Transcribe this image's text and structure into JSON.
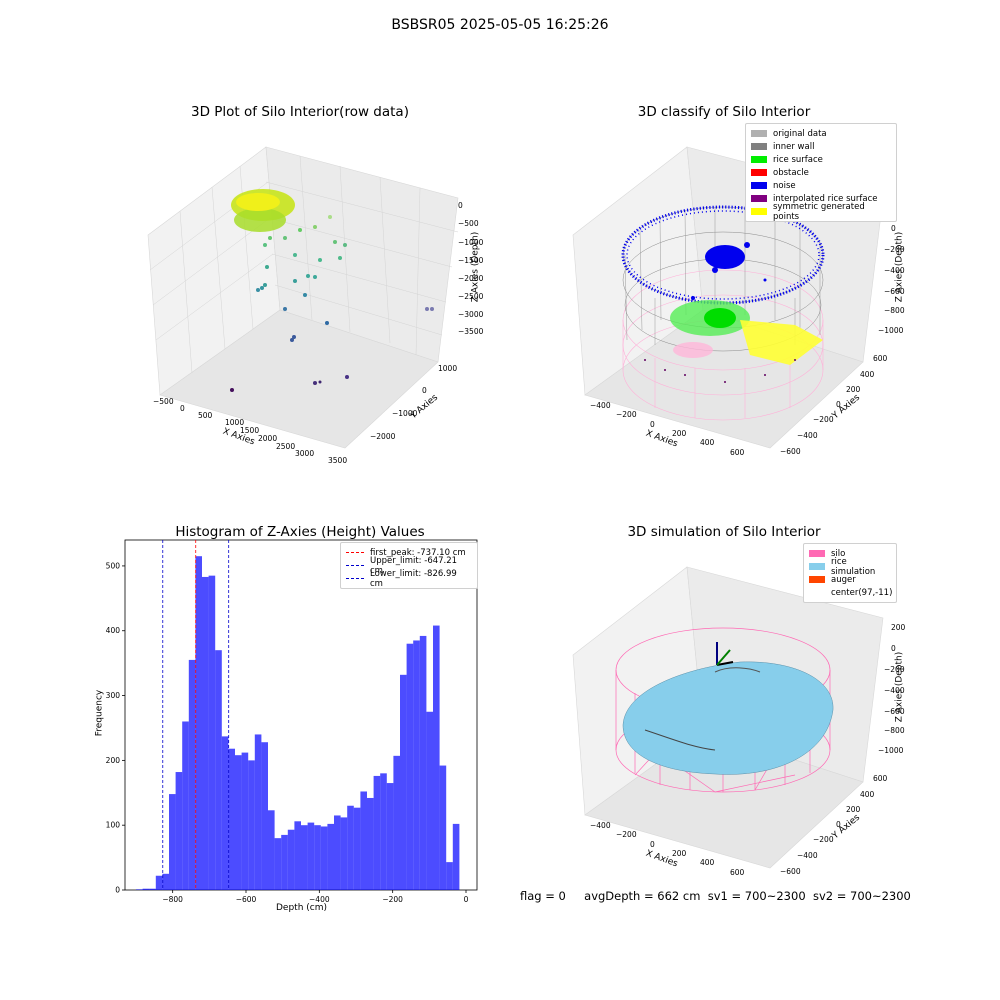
{
  "suptitle": "BSBSR05 2025-05-05 16:25:26",
  "panels": {
    "raw": {
      "title": "3D Plot of Silo Interior(row data)",
      "xlabel": "X Axies",
      "ylabel": "Y Axies",
      "zlabel": "Z Axies (Depth)",
      "xticks": [
        "−500",
        "0",
        "500",
        "1000",
        "1500",
        "2000",
        "2500",
        "3000",
        "3500"
      ],
      "yticks": [
        "1000",
        "0",
        "−1000",
        "−2000"
      ],
      "zticks": [
        "0",
        "−500",
        "−1000",
        "−1500",
        "−2000",
        "−2500",
        "−3000",
        "−3500"
      ]
    },
    "classify": {
      "title": "3D classify of Silo Interior",
      "xlabel": "X Axies",
      "ylabel": "Y Axies",
      "zlabel": "Z Axies (Depth)",
      "xticks": [
        "−400",
        "−200",
        "0",
        "200",
        "400",
        "600"
      ],
      "yticks": [
        "600",
        "400",
        "200",
        "0",
        "−200",
        "−400",
        "−600"
      ],
      "zticks": [
        "0",
        "−200",
        "−400",
        "−600",
        "−800",
        "−1000"
      ],
      "legend": [
        {
          "label": "original data",
          "color": "#b0b0b0"
        },
        {
          "label": "inner wall",
          "color": "#808080"
        },
        {
          "label": "rice surface",
          "color": "#00ee00"
        },
        {
          "label": "obstacle",
          "color": "#ff0000"
        },
        {
          "label": "noise",
          "color": "#0000ee"
        },
        {
          "label": "interpolated rice surface",
          "color": "#800080"
        },
        {
          "label": "symmetric generated points",
          "color": "#ffff00"
        }
      ]
    },
    "simulation": {
      "title": "3D simulation of Silo Interior",
      "xlabel": "X Axies",
      "ylabel": "Y Axies",
      "zlabel": "Z Axies (Depth)",
      "xticks": [
        "−400",
        "−200",
        "0",
        "200",
        "400",
        "600"
      ],
      "yticks": [
        "600",
        "400",
        "200",
        "0",
        "−200",
        "−400",
        "−600"
      ],
      "zticks": [
        "200",
        "0",
        "−200",
        "−400",
        "−600",
        "−800",
        "−1000"
      ],
      "legend": [
        {
          "label": "silo",
          "color": "#ff69b4"
        },
        {
          "label": "rice simulation",
          "color": "#87ceeb"
        },
        {
          "label": "auger",
          "color": "#ff4500"
        },
        {
          "label": "center(97,-11)",
          "color": "#ffffff"
        }
      ]
    }
  },
  "chart_data": [
    {
      "type": "bar",
      "title": "Histogram of Z-Axies (Height) Values",
      "xlabel": "Depth (cm)",
      "ylabel": "Frequency",
      "xlim": [
        -930,
        30
      ],
      "ylim": [
        0,
        540
      ],
      "xticks": [
        -800,
        -600,
        -400,
        -200,
        0
      ],
      "yticks": [
        0,
        100,
        200,
        300,
        400,
        500
      ],
      "bin_start": -900,
      "bin_width": 18,
      "values": [
        1,
        2,
        2,
        22,
        25,
        148,
        182,
        260,
        355,
        515,
        483,
        485,
        370,
        237,
        218,
        208,
        212,
        200,
        240,
        228,
        123,
        80,
        85,
        93,
        106,
        100,
        104,
        100,
        98,
        102,
        115,
        112,
        130,
        127,
        152,
        142,
        176,
        180,
        165,
        207,
        332,
        380,
        385,
        392,
        275,
        408,
        192,
        43,
        102
      ],
      "color": "#0000ff",
      "series": [
        {
          "name": "first_peak: -737.10 cm",
          "x": -737.1,
          "color": "#ff0000"
        },
        {
          "name": "Upper_limit: -647.21 cm",
          "x": -647.21,
          "color": "#0000cc"
        },
        {
          "name": "Lower_limit: -826.99 cm",
          "x": -826.99,
          "color": "#0000cc"
        }
      ],
      "legend_position": "top-right"
    }
  ],
  "footer": {
    "flag": "flag = 0",
    "avg": "avgDepth = 662 cm",
    "sv1": "sv1 = 700~2300",
    "sv2": "sv2 = 700~2300"
  }
}
